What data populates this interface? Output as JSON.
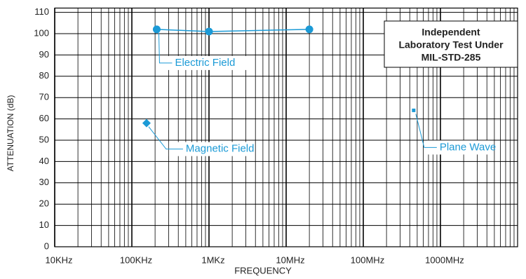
{
  "chart_data": {
    "type": "scatter",
    "xlabel": "FREQUENCY",
    "ylabel": "ATTENUATION (dB)",
    "xscale": "log",
    "xlim": [
      10000,
      10000000000
    ],
    "xticks": [
      {
        "value": 10000,
        "label": "10KHz"
      },
      {
        "value": 100000,
        "label": "100KHz"
      },
      {
        "value": 1000000,
        "label": "1MKz"
      },
      {
        "value": 10000000,
        "label": "10MHz"
      },
      {
        "value": 100000000,
        "label": "100MHz"
      },
      {
        "value": 1000000000,
        "label": "1000MHz"
      }
    ],
    "ylim": [
      0,
      112
    ],
    "yticks": [
      0,
      10,
      20,
      30,
      40,
      50,
      60,
      70,
      80,
      90,
      100,
      110
    ],
    "grid": true,
    "minor_grid": true,
    "note_box": [
      "Independent",
      "Laboratory Test Under",
      "MIL-STD-285"
    ],
    "series": [
      {
        "name": "Electric Field",
        "color": "#1b9ad6",
        "marker": "circle",
        "line": true,
        "x": [
          210000,
          1000000,
          20000000
        ],
        "values": [
          102,
          101,
          102
        ]
      },
      {
        "name": "Magnetic Field",
        "color": "#1b9ad6",
        "marker": "diamond",
        "line": false,
        "x": [
          155000
        ],
        "values": [
          58
        ]
      },
      {
        "name": "Plane Wave",
        "color": "#1b9ad6",
        "marker": "square",
        "line": false,
        "x": [
          450000000
        ],
        "values": [
          64
        ]
      }
    ]
  }
}
